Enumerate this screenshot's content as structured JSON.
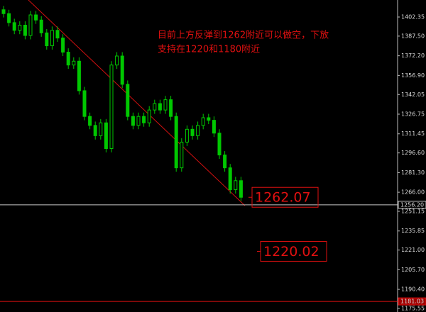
{
  "chart_data": {
    "type": "candlestick",
    "annotation": [
      "目前上方反弹到1262附近可以做空，下放",
      "支持在1220和1180附近"
    ],
    "color": "#00c800",
    "open": [
      1408,
      1405,
      1398,
      1392,
      1396,
      1388,
      1404,
      1400,
      1390,
      1380,
      1392,
      1386,
      1375,
      1365,
      1368,
      1345,
      1325,
      1318,
      1310,
      1320,
      1300,
      1365,
      1372,
      1350,
      1325,
      1318,
      1325,
      1320,
      1330,
      1335,
      1330,
      1338,
      1325,
      1285,
      1305,
      1315,
      1310,
      1318,
      1324,
      1322,
      1312,
      1295,
      1285,
      1268,
      1275
    ],
    "high": [
      1411,
      1408,
      1401,
      1399,
      1399,
      1407,
      1407,
      1403,
      1393,
      1395,
      1395,
      1389,
      1378,
      1371,
      1371,
      1348,
      1328,
      1321,
      1323,
      1323,
      1368,
      1375,
      1375,
      1353,
      1328,
      1328,
      1328,
      1333,
      1338,
      1338,
      1341,
      1341,
      1328,
      1308,
      1318,
      1318,
      1321,
      1327,
      1327,
      1325,
      1315,
      1298,
      1288,
      1278,
      1278
    ],
    "low": [
      1402,
      1395,
      1389,
      1389,
      1385,
      1385,
      1397,
      1387,
      1377,
      1377,
      1383,
      1372,
      1362,
      1362,
      1342,
      1322,
      1315,
      1307,
      1307,
      1297,
      1297,
      1362,
      1347,
      1322,
      1315,
      1315,
      1317,
      1317,
      1327,
      1327,
      1327,
      1322,
      1282,
      1282,
      1302,
      1307,
      1307,
      1315,
      1319,
      1309,
      1292,
      1282,
      1265,
      1265,
      1259
    ],
    "close": [
      1405,
      1398,
      1392,
      1396,
      1388,
      1404,
      1400,
      1390,
      1380,
      1392,
      1386,
      1375,
      1365,
      1368,
      1345,
      1325,
      1318,
      1310,
      1320,
      1300,
      1365,
      1372,
      1350,
      1325,
      1318,
      1325,
      1320,
      1330,
      1335,
      1330,
      1338,
      1325,
      1285,
      1305,
      1315,
      1310,
      1318,
      1324,
      1322,
      1312,
      1295,
      1285,
      1268,
      1275,
      1262.07
    ],
    "ylim": [
      1172.8,
      1415.6
    ],
    "yticks": [
      1402.35,
      {
        "value": 1387.5,
        "label": "1387.50"
      },
      {
        "value": 1372.2,
        "label": "1372.20"
      },
      {
        "value": 1356.9,
        "label": "1356.90"
      },
      1342.05,
      1326.75,
      1311.45,
      {
        "value": 1296.6,
        "label": "1296.60"
      },
      {
        "value": 1281.3,
        "label": "1281.30"
      },
      {
        "value": 1266,
        "label": "1266.00"
      },
      1251.15,
      1235.85,
      {
        "value": 1221,
        "label": "1221.00"
      },
      {
        "value": 1205.7,
        "label": "1205.70"
      },
      {
        "value": 1190.4,
        "label": "1190.40"
      },
      1175.55
    ],
    "hlines": [
      {
        "value": 1256.2,
        "label": "1256.20",
        "color": "#c8c8c8"
      },
      {
        "value": 1181.03,
        "label": "1181.03",
        "color": "#e01010"
      }
    ],
    "price_boxes": [
      1262.07,
      1220.02
    ]
  }
}
